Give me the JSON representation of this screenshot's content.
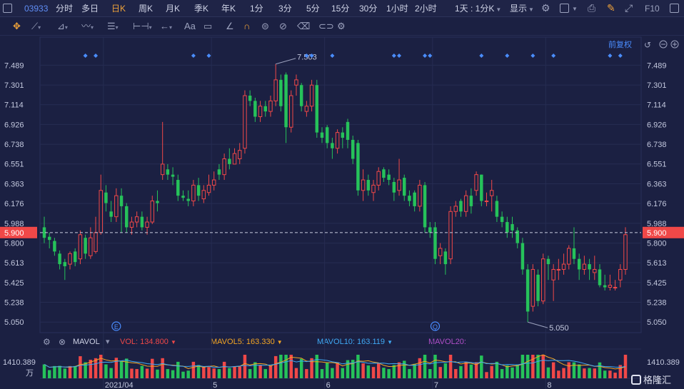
{
  "toolbar": {
    "stock_code": "03933",
    "periods": [
      "分时",
      "多日",
      "日K",
      "周K",
      "月K",
      "季K",
      "年K",
      "1分",
      "3分",
      "5分",
      "15分",
      "30分",
      "1小时",
      "2小时"
    ],
    "active_period": "日K",
    "range_select": "1天 : 1分K",
    "display_label": "显示",
    "f10_label": "F10"
  },
  "draw_tools": {
    "text_tool": "Aa"
  },
  "chart_header": {
    "adjust_label": "前复权"
  },
  "colors": {
    "background": "#1b2042",
    "up": "#f04848",
    "down": "#26c25a",
    "price_line": "#f04848",
    "ma5": "#f5a623",
    "ma10": "#3fa9f5",
    "ma20": "#b04fc8",
    "marker": "#4a8dff"
  },
  "volume_header": {
    "indicator": "MAVOL",
    "vol_label": "VOL: 134.800",
    "mavol5_label": "MAVOL5: 163.330",
    "mavol10_label": "MAVOL10: 163.119",
    "mavol20_label": "MAVOL20:"
  },
  "chart_data": {
    "type": "candlestick",
    "title": "",
    "y_ticks": [
      7.489,
      7.301,
      7.114,
      6.926,
      6.738,
      6.551,
      6.363,
      6.176,
      5.988,
      5.8,
      5.613,
      5.425,
      5.238,
      5.05
    ],
    "ylim": [
      4.95,
      7.62
    ],
    "current_price": "5.900",
    "high_label": "7.503",
    "low_label": "5.050",
    "x_labels": [
      "2021/04",
      "5",
      "6",
      "7",
      "8"
    ],
    "event_markers": [
      "E",
      "Q"
    ],
    "candles": [
      [
        5.95,
        5.85,
        6.05,
        5.8
      ],
      [
        5.86,
        5.83,
        5.9,
        5.75
      ],
      [
        5.82,
        5.72,
        5.85,
        5.68
      ],
      [
        5.7,
        5.6,
        5.73,
        5.55
      ],
      [
        5.62,
        5.58,
        5.65,
        5.45
      ],
      [
        5.6,
        5.7,
        5.72,
        5.55
      ],
      [
        5.72,
        5.62,
        5.75,
        5.58
      ],
      [
        5.65,
        5.88,
        5.92,
        5.6
      ],
      [
        5.85,
        5.7,
        5.88,
        5.65
      ],
      [
        5.68,
        5.85,
        5.95,
        5.65
      ],
      [
        5.72,
        5.9,
        6.05,
        5.7
      ],
      [
        5.9,
        6.3,
        6.45,
        5.88
      ],
      [
        6.28,
        6.18,
        6.35,
        6.1
      ],
      [
        6.1,
        6.05,
        6.2,
        6.0
      ],
      [
        6.05,
        6.25,
        6.32,
        6.0
      ],
      [
        6.25,
        6.15,
        6.32,
        5.9
      ],
      [
        6.15,
        5.95,
        6.18,
        5.9
      ],
      [
        5.95,
        6.0,
        6.05,
        5.88
      ],
      [
        6.0,
        6.05,
        6.1,
        5.95
      ],
      [
        6.05,
        5.95,
        6.1,
        5.92
      ],
      [
        5.95,
        6.0,
        6.05,
        5.88
      ],
      [
        6.0,
        6.2,
        6.25,
        5.98
      ],
      [
        6.2,
        6.18,
        6.3,
        6.1
      ],
      [
        6.45,
        6.55,
        6.95,
        6.4
      ],
      [
        6.5,
        6.45,
        6.55,
        6.4
      ],
      [
        6.45,
        6.43,
        6.52,
        6.35
      ],
      [
        6.4,
        6.25,
        6.45,
        6.2
      ],
      [
        6.25,
        6.23,
        6.3,
        6.2
      ],
      [
        6.22,
        6.2,
        6.3,
        6.15
      ],
      [
        6.2,
        6.35,
        6.4,
        6.15
      ],
      [
        6.35,
        6.25,
        6.42,
        6.2
      ],
      [
        6.22,
        6.3,
        6.35,
        6.18
      ],
      [
        6.28,
        6.35,
        6.45,
        6.25
      ],
      [
        6.35,
        6.4,
        6.48,
        6.3
      ],
      [
        6.5,
        6.45,
        6.55,
        6.4
      ],
      [
        6.45,
        6.6,
        6.65,
        6.4
      ],
      [
        6.6,
        6.55,
        6.7,
        6.5
      ],
      [
        6.55,
        6.65,
        6.7,
        6.55
      ],
      [
        6.6,
        6.68,
        6.75,
        6.55
      ],
      [
        6.7,
        7.2,
        7.25,
        6.65
      ],
      [
        7.2,
        7.15,
        7.25,
        7.1
      ],
      [
        7.15,
        7.0,
        7.18,
        6.95
      ],
      [
        7.0,
        7.1,
        7.15,
        6.95
      ],
      [
        7.1,
        7.05,
        7.15,
        7.0
      ],
      [
        7.05,
        7.15,
        7.2,
        7.0
      ],
      [
        7.15,
        7.35,
        7.5,
        7.1
      ],
      [
        7.35,
        7.1,
        7.4,
        7.05
      ],
      [
        7.4,
        6.9,
        7.42,
        6.75
      ],
      [
        6.9,
        7.2,
        7.25,
        6.85
      ],
      [
        7.3,
        7.35,
        7.4,
        7.2
      ],
      [
        7.3,
        7.1,
        7.32,
        7.05
      ],
      [
        7.05,
        7.1,
        7.15,
        7.0
      ],
      [
        7.1,
        7.3,
        7.35,
        7.05
      ],
      [
        7.3,
        6.85,
        7.35,
        6.8
      ],
      [
        6.85,
        6.8,
        6.9,
        6.75
      ],
      [
        6.9,
        6.75,
        6.92,
        6.7
      ],
      [
        6.75,
        6.7,
        6.8,
        6.6
      ],
      [
        6.7,
        6.85,
        6.88,
        6.65
      ],
      [
        6.85,
        6.8,
        6.9,
        6.7
      ],
      [
        6.95,
        6.78,
        6.98,
        6.7
      ],
      [
        6.78,
        6.6,
        6.82,
        6.55
      ],
      [
        6.75,
        6.3,
        6.78,
        6.25
      ],
      [
        6.3,
        6.4,
        6.5,
        6.2
      ],
      [
        6.4,
        6.3,
        6.45,
        6.25
      ],
      [
        6.28,
        6.35,
        6.4,
        6.2
      ],
      [
        6.35,
        6.48,
        6.52,
        6.3
      ],
      [
        6.5,
        6.42,
        6.52,
        6.38
      ],
      [
        6.45,
        6.4,
        6.5,
        6.35
      ],
      [
        6.38,
        6.28,
        6.42,
        6.2
      ],
      [
        6.3,
        6.4,
        6.6,
        6.25
      ],
      [
        6.42,
        6.25,
        6.45,
        6.2
      ],
      [
        6.25,
        6.2,
        6.3,
        6.15
      ],
      [
        6.28,
        6.15,
        6.3,
        6.1
      ],
      [
        6.15,
        6.35,
        6.4,
        6.1
      ],
      [
        6.35,
        5.95,
        6.38,
        5.9
      ],
      [
        5.95,
        5.9,
        6.0,
        5.85
      ],
      [
        5.95,
        5.65,
        6.0,
        5.6
      ],
      [
        5.68,
        5.75,
        5.8,
        5.6
      ],
      [
        5.72,
        5.6,
        5.75,
        5.5
      ],
      [
        5.65,
        6.1,
        6.15,
        5.6
      ],
      [
        6.1,
        6.15,
        6.2,
        6.05
      ],
      [
        6.2,
        6.1,
        6.22,
        6.05
      ],
      [
        6.1,
        6.25,
        6.3,
        6.05
      ],
      [
        6.25,
        6.15,
        6.32,
        6.08
      ],
      [
        6.3,
        6.45,
        6.48,
        6.25
      ],
      [
        6.45,
        6.2,
        6.45,
        6.15
      ],
      [
        6.2,
        6.2,
        6.28,
        6.15
      ],
      [
        6.25,
        6.3,
        6.4,
        6.1
      ],
      [
        6.2,
        6.05,
        6.25,
        6.0
      ],
      [
        6.05,
        6.0,
        6.1,
        5.95
      ],
      [
        6.0,
        5.9,
        6.05,
        5.85
      ],
      [
        5.98,
        5.92,
        6.05,
        5.85
      ],
      [
        5.92,
        5.8,
        5.95,
        5.75
      ],
      [
        5.8,
        5.55,
        5.85,
        5.5
      ],
      [
        5.55,
        5.15,
        5.6,
        5.05
      ],
      [
        5.2,
        5.55,
        5.6,
        5.15
      ],
      [
        5.5,
        5.25,
        5.55,
        5.2
      ],
      [
        5.25,
        5.65,
        5.7,
        5.22
      ],
      [
        5.65,
        5.6,
        5.68,
        5.45
      ],
      [
        5.45,
        5.55,
        5.6,
        5.25
      ],
      [
        5.55,
        5.55,
        5.65,
        5.45
      ],
      [
        5.55,
        5.6,
        5.7,
        5.5
      ],
      [
        5.6,
        5.75,
        5.78,
        5.55
      ],
      [
        5.75,
        5.65,
        5.95,
        5.6
      ],
      [
        5.65,
        5.55,
        5.7,
        5.45
      ],
      [
        5.55,
        5.6,
        5.68,
        5.5
      ],
      [
        5.6,
        5.55,
        5.65,
        5.45
      ],
      [
        5.52,
        5.55,
        5.68,
        5.45
      ],
      [
        5.55,
        5.4,
        5.6,
        5.38
      ],
      [
        5.4,
        5.38,
        5.5,
        5.35
      ],
      [
        5.38,
        5.4,
        5.5,
        5.35
      ],
      [
        5.38,
        5.38,
        5.45,
        5.35
      ],
      [
        5.45,
        5.55,
        5.6,
        5.38
      ],
      [
        5.55,
        5.88,
        5.95,
        5.5
      ]
    ],
    "volume": {
      "max_label": "1410.389",
      "unit_label": "万",
      "max_value": 1410.389
    }
  }
}
